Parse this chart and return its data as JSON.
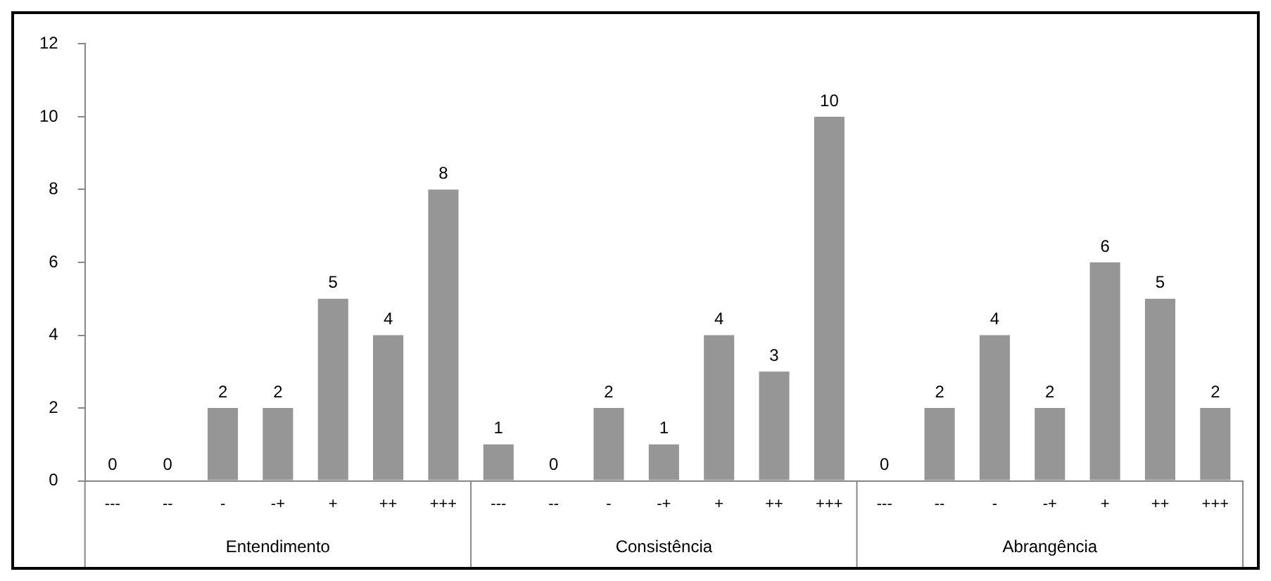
{
  "chart_data": {
    "type": "bar",
    "categories": [
      "---",
      "--",
      "-",
      "-+",
      "+",
      "++",
      "+++",
      "---",
      "--",
      "-",
      "-+",
      "+",
      "++",
      "+++",
      "---",
      "--",
      "-",
      "-+",
      "+",
      "++",
      "+++"
    ],
    "values": [
      0,
      0,
      2,
      2,
      5,
      4,
      8,
      1,
      0,
      2,
      1,
      4,
      3,
      10,
      0,
      2,
      4,
      2,
      6,
      5,
      2
    ],
    "color": "#969696",
    "ylim": [
      0,
      12
    ],
    "yticks": [
      0,
      2,
      4,
      6,
      8,
      10,
      12
    ],
    "grid": false,
    "legend": false,
    "data_labels": true,
    "annotations": [
      "Entendimento",
      "Consistência",
      "Abrangência"
    ]
  }
}
